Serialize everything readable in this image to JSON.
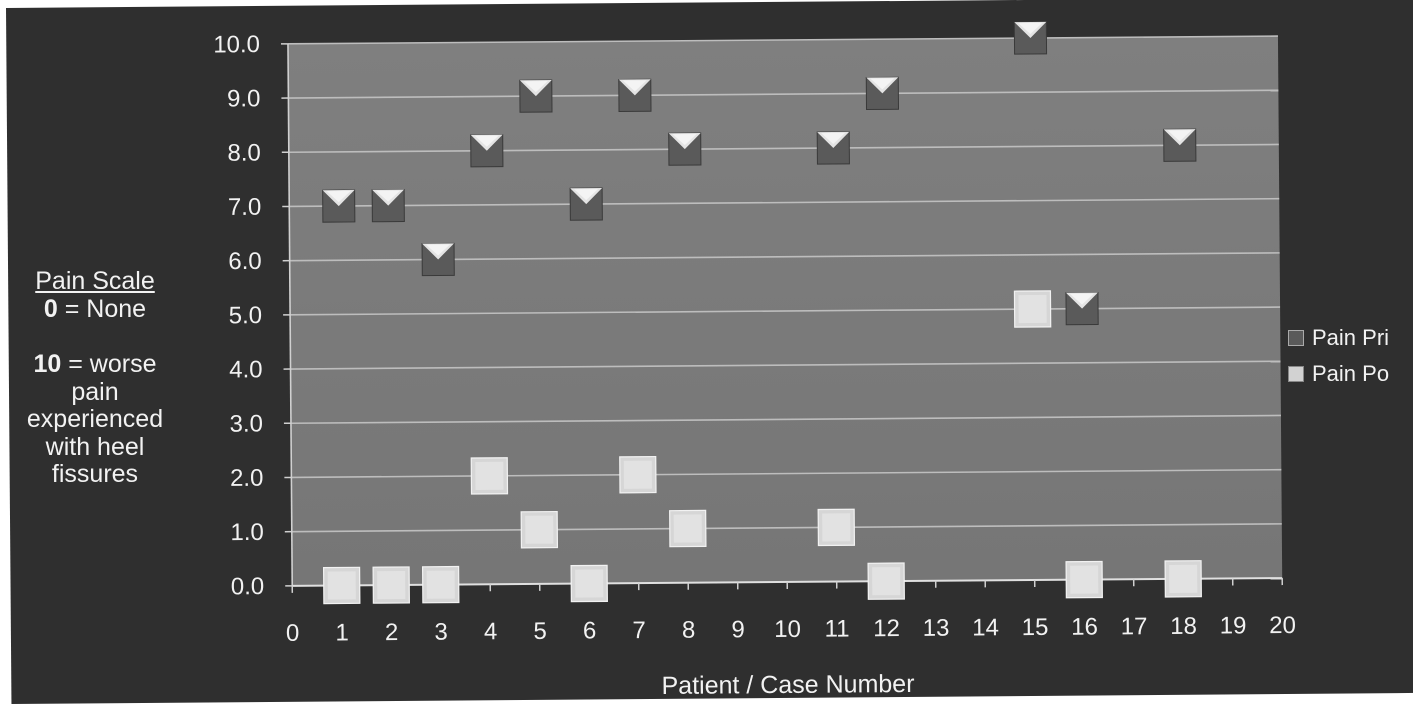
{
  "chart_data": {
    "type": "scatter",
    "xlabel": "Patient / Case Number",
    "ylabel": "",
    "x_ticks": [
      "0",
      "1",
      "2",
      "3",
      "4",
      "5",
      "6",
      "7",
      "8",
      "9",
      "10",
      "11",
      "12",
      "13",
      "14",
      "15",
      "16",
      "17",
      "18",
      "19",
      "20"
    ],
    "y_ticks": [
      "0.0",
      "1.0",
      "2.0",
      "3.0",
      "4.0",
      "5.0",
      "6.0",
      "7.0",
      "8.0",
      "9.0",
      "10.0"
    ],
    "ylim": [
      0,
      10
    ],
    "grid": true,
    "legend_position": "right",
    "series": [
      {
        "name": "Pain Pri",
        "color": "#5a5a5a",
        "marker": "dark-beveled-square",
        "points": [
          {
            "case": "1",
            "value": 7.0
          },
          {
            "case": "2",
            "value": 7.0
          },
          {
            "case": "3",
            "value": 6.0
          },
          {
            "case": "4",
            "value": 8.0
          },
          {
            "case": "5",
            "value": 9.0
          },
          {
            "case": "6",
            "value": 7.0
          },
          {
            "case": "7",
            "value": 9.0
          },
          {
            "case": "8",
            "value": 8.0
          },
          {
            "case": "11",
            "value": 8.0
          },
          {
            "case": "12",
            "value": 9.0
          },
          {
            "case": "15",
            "value": 10.0
          },
          {
            "case": "16",
            "value": 5.0
          },
          {
            "case": "18",
            "value": 8.0
          }
        ]
      },
      {
        "name": "Pain Po",
        "color": "#d2d2d2",
        "marker": "light-beveled-square",
        "points": [
          {
            "case": "1",
            "value": 0.0
          },
          {
            "case": "2",
            "value": 0.0
          },
          {
            "case": "3",
            "value": 0.0
          },
          {
            "case": "4",
            "value": 2.0
          },
          {
            "case": "5",
            "value": 1.0
          },
          {
            "case": "6",
            "value": 0.0
          },
          {
            "case": "7",
            "value": 2.0
          },
          {
            "case": "8",
            "value": 1.0
          },
          {
            "case": "11",
            "value": 1.0
          },
          {
            "case": "12",
            "value": 0.0
          },
          {
            "case": "15",
            "value": 5.0
          },
          {
            "case": "16",
            "value": 0.0
          },
          {
            "case": "18",
            "value": 0.0
          }
        ]
      }
    ],
    "colors": {
      "background": "#2f2f2f",
      "plot_area": "#7b7b7b",
      "gridline": "#bdbdbd",
      "text": "#f2f2f2"
    }
  },
  "side_note": {
    "title": "Pain Scale",
    "zero_value": "0",
    "zero_text": " = None",
    "ten_value": "10",
    "ten_text": " = worse",
    "lines": [
      "pain",
      "experienced",
      "with heel",
      "fissures"
    ]
  }
}
